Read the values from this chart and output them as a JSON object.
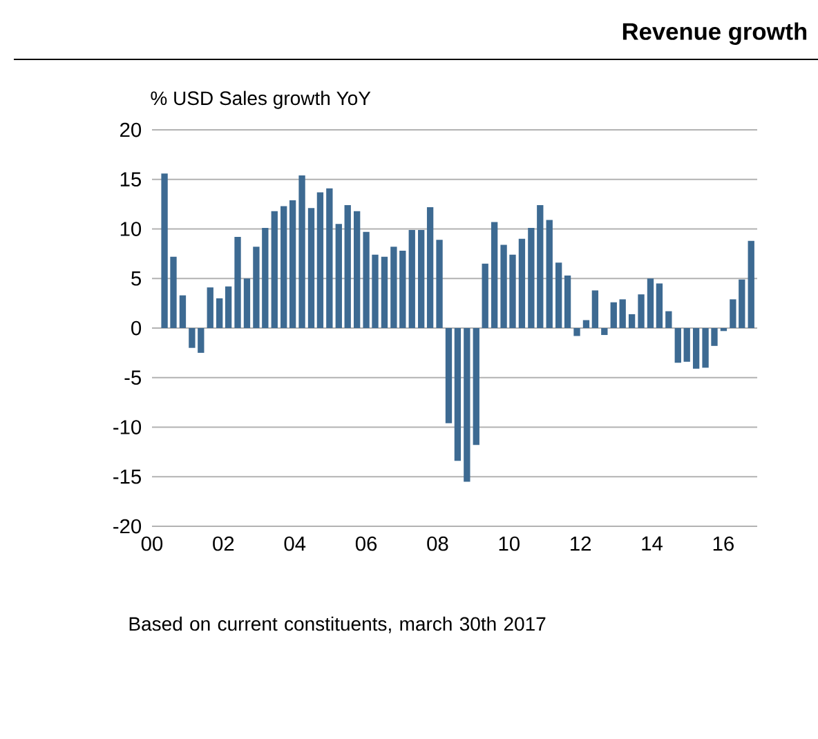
{
  "chart_data": {
    "type": "bar",
    "title": "Revenue growth",
    "ylabel": "%  USD Sales growth YoY",
    "annotations": [
      "Based on current constituents, march 30th 2017"
    ],
    "x": [
      0.35,
      0.6,
      0.86,
      1.12,
      1.37,
      1.63,
      1.89,
      2.14,
      2.4,
      2.66,
      2.92,
      3.17,
      3.43,
      3.69,
      3.94,
      4.2,
      4.46,
      4.71,
      4.97,
      5.23,
      5.48,
      5.74,
      6.0,
      6.25,
      6.51,
      6.77,
      7.02,
      7.28,
      7.54,
      7.79,
      8.05,
      8.31,
      8.56,
      8.82,
      9.08,
      9.33,
      9.59,
      9.85,
      10.1,
      10.36,
      10.62,
      10.87,
      11.13,
      11.39,
      11.64,
      11.9,
      12.16,
      12.41,
      12.67,
      12.93,
      13.18,
      13.44,
      13.7,
      13.96,
      14.21,
      14.47,
      14.73,
      14.98,
      15.24,
      15.5,
      15.75,
      16.01,
      16.27,
      16.52,
      16.78
    ],
    "values": [
      15.6,
      7.2,
      3.3,
      -2.0,
      -2.5,
      4.1,
      3.0,
      4.2,
      9.2,
      5.0,
      8.2,
      10.1,
      11.8,
      12.3,
      12.9,
      15.4,
      12.1,
      13.7,
      14.1,
      10.5,
      12.4,
      11.8,
      9.7,
      7.4,
      7.2,
      8.2,
      7.8,
      9.9,
      9.9,
      12.2,
      8.9,
      -9.6,
      -13.4,
      -15.5,
      -11.8,
      6.5,
      10.7,
      8.4,
      7.4,
      9.0,
      10.1,
      12.4,
      10.9,
      6.6,
      5.3,
      -0.8,
      0.8,
      3.8,
      -0.7,
      2.6,
      2.9,
      1.4,
      3.4,
      5.0,
      4.5,
      1.7,
      -3.5,
      -3.4,
      -4.1,
      -4.0,
      -1.8,
      -0.3,
      2.9,
      4.9,
      8.8
    ],
    "color": "#3d6a92",
    "xlim": [
      0,
      16.95
    ],
    "xticks": [
      {
        "value": 0,
        "label": "00"
      },
      {
        "value": 2,
        "label": "02"
      },
      {
        "value": 4,
        "label": "04"
      },
      {
        "value": 6,
        "label": "06"
      },
      {
        "value": 8,
        "label": "08"
      },
      {
        "value": 10,
        "label": "10"
      },
      {
        "value": 12,
        "label": "12"
      },
      {
        "value": 14,
        "label": "14"
      },
      {
        "value": 16,
        "label": "16"
      }
    ],
    "ylim": [
      -20,
      20
    ],
    "yticks": [
      -20,
      -15,
      -10,
      -5,
      0,
      5,
      10,
      15,
      20
    ],
    "grid": "y"
  }
}
